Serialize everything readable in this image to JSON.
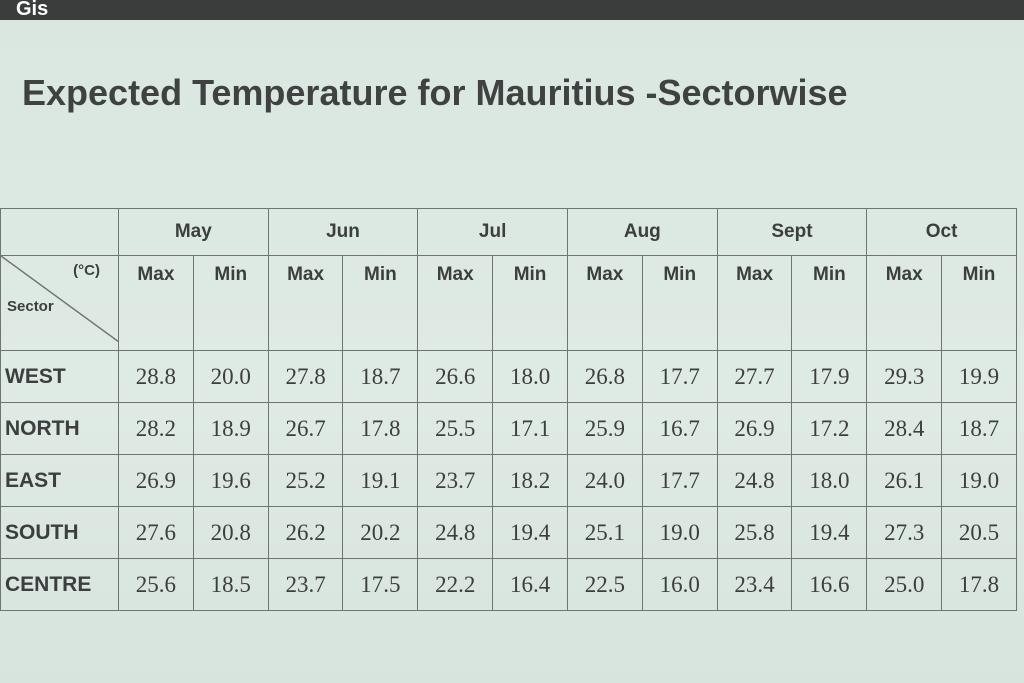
{
  "logo": "Gis",
  "title": "Expected Temperature for Mauritius -Sectorwise",
  "table": {
    "unit": "(°C)",
    "sector_label": "Sector",
    "months": [
      "May",
      "Jun",
      "Jul",
      "Aug",
      "Sept",
      "Oct"
    ],
    "subheaders": [
      "Max",
      "Min",
      "Max",
      "Min",
      "Max",
      "Min",
      "Max",
      "Min",
      "Max",
      "Min",
      "Max",
      "Min"
    ],
    "rows": [
      {
        "sector": "WEST",
        "values": [
          "28.8",
          "20.0",
          "27.8",
          "18.7",
          "26.6",
          "18.0",
          "26.8",
          "17.7",
          "27.7",
          "17.9",
          "29.3",
          "19.9"
        ]
      },
      {
        "sector": "NORTH",
        "values": [
          "28.2",
          "18.9",
          "26.7",
          "17.8",
          "25.5",
          "17.1",
          "25.9",
          "16.7",
          "26.9",
          "17.2",
          "28.4",
          "18.7"
        ]
      },
      {
        "sector": "EAST",
        "values": [
          "26.9",
          "19.6",
          "25.2",
          "19.1",
          "23.7",
          "18.2",
          "24.0",
          "17.7",
          "24.8",
          "18.0",
          "26.1",
          "19.0"
        ]
      },
      {
        "sector": "SOUTH",
        "values": [
          "27.6",
          "20.8",
          "26.2",
          "20.2",
          "24.8",
          "19.4",
          "25.1",
          "19.0",
          "25.8",
          "19.4",
          "27.3",
          "20.5"
        ]
      },
      {
        "sector": "CENTRE",
        "values": [
          "25.6",
          "18.5",
          "23.7",
          "17.5",
          "22.2",
          "16.4",
          "22.5",
          "16.0",
          "23.4",
          "16.6",
          "25.0",
          "17.8"
        ]
      }
    ]
  }
}
